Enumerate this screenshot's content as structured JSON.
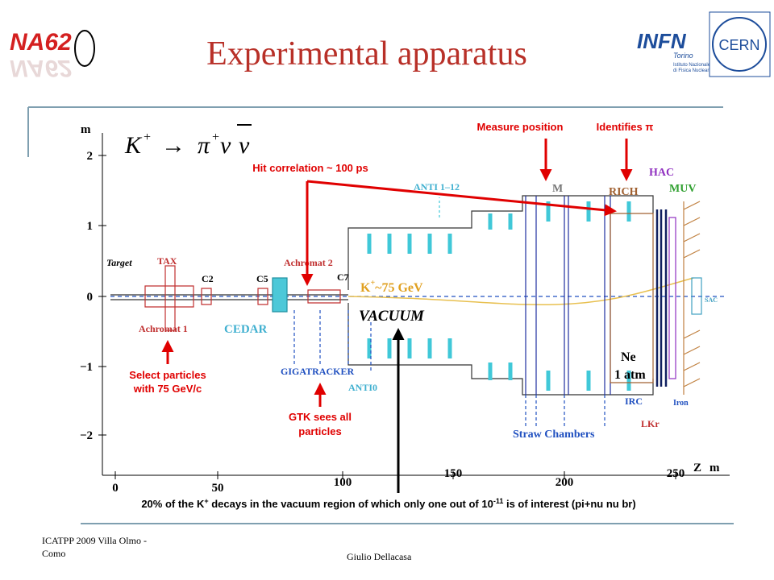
{
  "header": {
    "title": "Experimental apparatus",
    "logo_left": "NA62",
    "logo_infn": "INFN",
    "logo_infn_city": "Torino",
    "logo_infn_sub": [
      "Istituto Nazionale",
      "di Fisica Nucleare"
    ],
    "logo_cern": "CERN"
  },
  "diagram": {
    "formula": {
      "k": "K",
      "plus": "+",
      "arrow": "→",
      "pi": "π",
      "pi_plus": "+",
      "nu": "ν",
      "nubar": "ν"
    },
    "y_axis": {
      "label": "m",
      "ticks": [
        "2",
        "1",
        "0",
        "−1",
        "−2"
      ]
    },
    "x_axis": {
      "label": "Z",
      "unit": "m",
      "ticks": [
        "0",
        "50",
        "100",
        "150",
        "200",
        "250"
      ]
    },
    "labels": [
      "Target",
      "TAX",
      "C2",
      "C5",
      "Achromat 2",
      "C7",
      "Achromat 1",
      "CEDAR",
      "GIGATRACKER",
      "ANTI0",
      "ANTI 1–12",
      "M",
      "RICH",
      "HAC",
      "MUV",
      "VACUUM",
      "K",
      "+",
      "~75 GeV",
      "Straw Chambers",
      "Ne",
      "1 atm",
      "IRC",
      "LKr",
      "Iron",
      "SAC"
    ]
  },
  "annotations": {
    "measure": "Measure position",
    "identifies": "Identifies π",
    "hit": "Hit correlation ~ 100 ps",
    "select": [
      "Select particles",
      "with 75 GeV/c"
    ],
    "gtk": [
      "GTK sees all",
      "particles"
    ],
    "note": {
      "a": "20% of the K",
      "sup1": "+",
      "b": " decays in the vacuum region of which only one out of 10",
      "sup2": "-11",
      "c": " is of interest (pi+nu nu br)"
    }
  },
  "footer": {
    "event": [
      "ICATPP 2009 Villa Olmo -",
      "Como"
    ],
    "author": "Giulio Dellacasa"
  }
}
